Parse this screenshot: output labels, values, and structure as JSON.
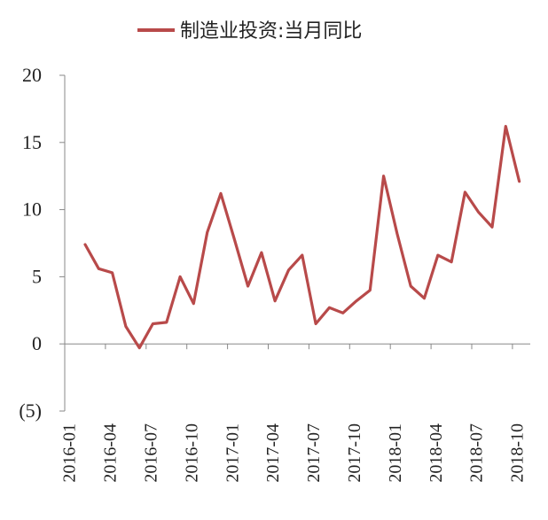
{
  "colors": {
    "series": "#b84a4a",
    "axis": "#888888",
    "neg_label": "#c0392b"
  },
  "chart_data": {
    "type": "line",
    "title": "",
    "xlabel": "",
    "ylabel": "",
    "ylim": [
      -5,
      20
    ],
    "yticks": [
      20,
      15,
      10,
      5,
      0,
      -5
    ],
    "ytick_labels": [
      "20",
      "15",
      "10",
      "5",
      "0",
      "(5)"
    ],
    "x_tick_labels": [
      "2016-01",
      "2016-04",
      "2016-07",
      "2016-10",
      "2017-01",
      "2017-04",
      "2017-07",
      "2017-10",
      "2018-01",
      "2018-04",
      "2018-07",
      "2018-10"
    ],
    "grid": false,
    "legend_position": "top",
    "series": [
      {
        "name": "制造业投资:当月同比",
        "x": [
          "2016-02",
          "2016-03",
          "2016-04",
          "2016-05",
          "2016-06",
          "2016-07",
          "2016-08",
          "2016-09",
          "2016-10",
          "2016-11",
          "2016-12",
          "2017-01",
          "2017-02",
          "2017-03",
          "2017-04",
          "2017-05",
          "2017-06",
          "2017-07",
          "2017-08",
          "2017-09",
          "2017-10",
          "2017-11",
          "2017-12",
          "2018-01",
          "2018-02",
          "2018-03",
          "2018-04",
          "2018-05",
          "2018-06",
          "2018-07",
          "2018-08",
          "2018-09",
          "2018-10"
        ],
        "values": [
          7.4,
          5.6,
          5.3,
          1.3,
          -0.3,
          1.5,
          1.6,
          5.0,
          3.0,
          8.3,
          11.2,
          7.8,
          4.3,
          6.8,
          3.2,
          5.5,
          6.6,
          1.5,
          2.7,
          2.3,
          3.2,
          4.0,
          12.5,
          8.2,
          4.3,
          3.4,
          6.6,
          6.1,
          11.3,
          9.8,
          8.7,
          16.2,
          12.1
        ]
      }
    ]
  }
}
